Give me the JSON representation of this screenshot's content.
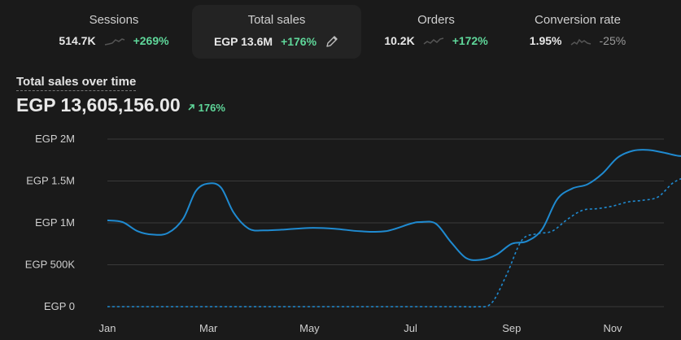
{
  "metrics": [
    {
      "label": "Sessions",
      "value": "514.7K",
      "change": "+269%",
      "trend": "up"
    },
    {
      "label": "Total sales",
      "value": "EGP 13.6M",
      "change": "+176%",
      "trend": "up"
    },
    {
      "label": "Orders",
      "value": "10.2K",
      "change": "+172%",
      "trend": "up"
    },
    {
      "label": "Conversion rate",
      "value": "1.95%",
      "change": "-25%",
      "trend": "down"
    }
  ],
  "chart_header": {
    "title": "Total sales over time",
    "total": "EGP 13,605,156.00",
    "change": "176%"
  },
  "colors": {
    "background": "#1a1a1a",
    "line": "#1f8ad0",
    "positive": "#5fd79a",
    "gridline": "#3a3a3a"
  },
  "icons": [
    "sparkline-icon",
    "pencil-icon",
    "arrow-up-right-icon"
  ],
  "chart_data": {
    "type": "line",
    "ylim": [
      0,
      2000000
    ],
    "yticks": [
      {
        "value": 0,
        "label": "EGP 0"
      },
      {
        "value": 500000,
        "label": "EGP 500K"
      },
      {
        "value": 1000000,
        "label": "EGP 1M"
      },
      {
        "value": 1500000,
        "label": "EGP 1.5M"
      },
      {
        "value": 2000000,
        "label": "EGP 2M"
      }
    ],
    "xticks": [
      {
        "month": 0,
        "label": "Jan"
      },
      {
        "month": 2,
        "label": "Mar"
      },
      {
        "month": 4,
        "label": "May"
      },
      {
        "month": 6,
        "label": "Jul"
      },
      {
        "month": 8,
        "label": "Sep"
      },
      {
        "month": 10,
        "label": "Nov"
      }
    ],
    "grid": true,
    "series": [
      {
        "style": "solid",
        "x": [
          0,
          0.3,
          0.6,
          0.9,
          1.2,
          1.5,
          1.75,
          2.0,
          2.25,
          2.5,
          2.8,
          3.1,
          3.5,
          4.0,
          4.5,
          5.0,
          5.5,
          6.0,
          6.2,
          6.5,
          6.8,
          7.1,
          7.4,
          7.7,
          8.0,
          8.3,
          8.6,
          8.9,
          9.2,
          9.5,
          9.8,
          10.1,
          10.4,
          10.7,
          11.0,
          11.3,
          11.5
        ],
        "y": [
          1030000,
          1010000,
          900000,
          860000,
          880000,
          1050000,
          1380000,
          1470000,
          1420000,
          1120000,
          930000,
          910000,
          920000,
          940000,
          930000,
          900000,
          900000,
          990000,
          1010000,
          990000,
          770000,
          580000,
          560000,
          620000,
          750000,
          780000,
          920000,
          1280000,
          1410000,
          1460000,
          1590000,
          1780000,
          1860000,
          1870000,
          1840000,
          1800000,
          1800000
        ]
      },
      {
        "style": "dashed",
        "x": [
          0,
          2.0,
          4.0,
          6.0,
          7.0,
          7.3,
          7.6,
          7.9,
          8.2,
          8.5,
          8.8,
          9.1,
          9.4,
          9.7,
          10.0,
          10.3,
          10.6,
          10.9,
          11.2,
          11.5
        ],
        "y": [
          0,
          0,
          0,
          0,
          0,
          0,
          40000,
          380000,
          790000,
          870000,
          900000,
          1040000,
          1150000,
          1170000,
          1200000,
          1250000,
          1270000,
          1310000,
          1480000,
          1560000
        ]
      }
    ]
  }
}
